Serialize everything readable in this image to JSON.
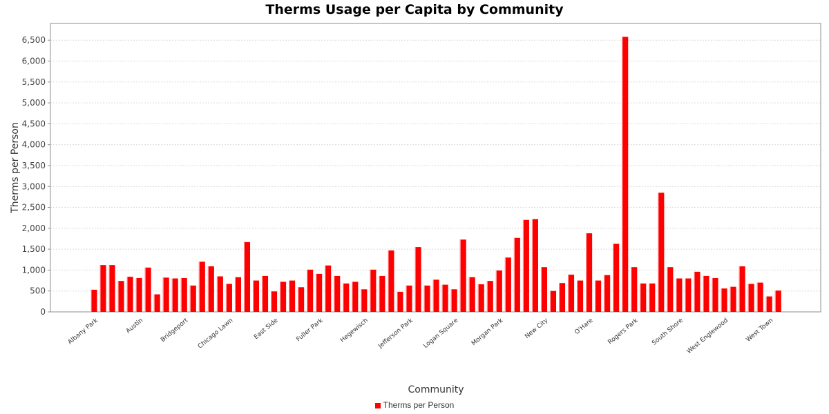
{
  "chart_data": {
    "type": "bar",
    "title": "Therms Usage per Capita by Community",
    "xlabel": "Community",
    "ylabel": "Therms per Person",
    "ylim": [
      0,
      6900
    ],
    "yticks": [
      0,
      500,
      1000,
      1500,
      2000,
      2500,
      3000,
      3500,
      4000,
      4500,
      5000,
      5500,
      6000,
      6500
    ],
    "ytick_labels": [
      "0",
      "500",
      "1,000",
      "1,500",
      "2,000",
      "2,500",
      "3,000",
      "3,500",
      "4,000",
      "4,500",
      "5,000",
      "5,500",
      "6,000",
      "6,500"
    ],
    "grid": true,
    "legend_position": "bottom",
    "bar_color": "#ff0000",
    "visible_tick_labels": [
      {
        "index": 0,
        "label": "Albany Park"
      },
      {
        "index": 5,
        "label": "Austin"
      },
      {
        "index": 10,
        "label": "Bridgeport"
      },
      {
        "index": 15,
        "label": "Chicago Lawn"
      },
      {
        "index": 20,
        "label": "East Side"
      },
      {
        "index": 25,
        "label": "Fuller Park"
      },
      {
        "index": 30,
        "label": "Hegewisch"
      },
      {
        "index": 35,
        "label": "Jefferson Park"
      },
      {
        "index": 40,
        "label": "Logan Square"
      },
      {
        "index": 45,
        "label": "Morgan Park"
      },
      {
        "index": 50,
        "label": "New City"
      },
      {
        "index": 55,
        "label": "O'Hare"
      },
      {
        "index": 60,
        "label": "Rogers Park"
      },
      {
        "index": 65,
        "label": "South Shore"
      },
      {
        "index": 70,
        "label": "West Englewood"
      },
      {
        "index": 75,
        "label": "West Town"
      }
    ],
    "series": [
      {
        "name": "Therms per Person",
        "values": [
          530,
          1120,
          1120,
          740,
          840,
          810,
          1060,
          420,
          820,
          800,
          810,
          630,
          1200,
          1090,
          850,
          670,
          830,
          1670,
          750,
          860,
          490,
          720,
          750,
          590,
          1010,
          910,
          1110,
          860,
          680,
          720,
          540,
          1010,
          860,
          1470,
          480,
          630,
          1550,
          630,
          770,
          650,
          540,
          1730,
          830,
          660,
          740,
          990,
          1300,
          1770,
          2200,
          2220,
          1070,
          500,
          690,
          890,
          750,
          1880,
          750,
          880,
          1630,
          6580,
          1070,
          680,
          680,
          2850,
          1070,
          800,
          800,
          960,
          860,
          810,
          560,
          600,
          1090,
          670,
          700,
          370,
          510
        ]
      }
    ]
  }
}
